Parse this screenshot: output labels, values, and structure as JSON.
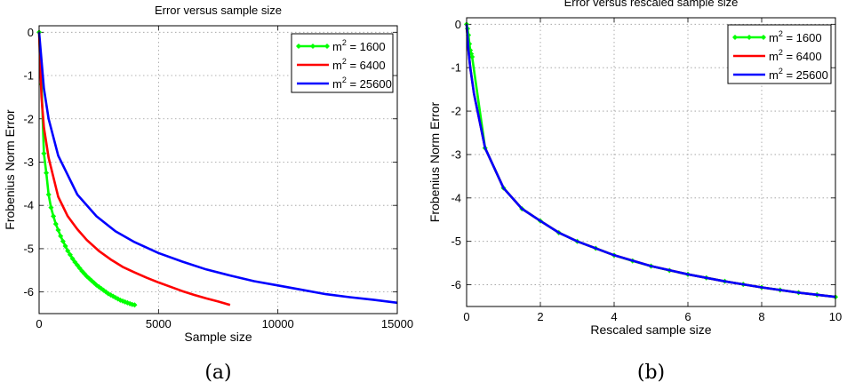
{
  "colors": {
    "green": "#00ff00",
    "red": "#ff0000",
    "blue": "#0000ff",
    "grid": "#9a9a9a",
    "frame": "#000000"
  },
  "chart_data": [
    {
      "type": "line",
      "panel_label": "(a)",
      "title": "Error versus sample size",
      "xlabel": "Sample size",
      "ylabel": "Frobenius Norm Error",
      "xlim": [
        0,
        15000
      ],
      "ylim": [
        -6.5,
        0.15
      ],
      "xticks": [
        0,
        5000,
        10000,
        15000
      ],
      "yticks": [
        0,
        -1,
        -2,
        -3,
        -4,
        -5,
        -6
      ],
      "grid": true,
      "legend_position": "top-right",
      "series": [
        {
          "name": "m² = 1600",
          "label_base": "m",
          "label_sup": "2",
          "label_rest": " = 1600",
          "color": "#00ff00",
          "markers": true,
          "x": [
            0,
            100,
            200,
            300,
            400,
            500,
            600,
            700,
            800,
            900,
            1000,
            1100,
            1200,
            1300,
            1400,
            1500,
            1600,
            1700,
            1800,
            1900,
            2000,
            2100,
            2200,
            2300,
            2400,
            2500,
            2600,
            2700,
            2800,
            2900,
            3000,
            3100,
            3200,
            3300,
            3400,
            3500,
            3600,
            3700,
            3800,
            3900,
            4000
          ],
          "y": [
            0,
            -1.2,
            -2.8,
            -3.25,
            -3.75,
            -4.05,
            -4.25,
            -4.43,
            -4.57,
            -4.71,
            -4.83,
            -4.94,
            -5.05,
            -5.14,
            -5.23,
            -5.31,
            -5.38,
            -5.45,
            -5.52,
            -5.58,
            -5.64,
            -5.69,
            -5.74,
            -5.79,
            -5.84,
            -5.88,
            -5.92,
            -5.96,
            -6.0,
            -6.04,
            -6.07,
            -6.1,
            -6.13,
            -6.16,
            -6.19,
            -6.21,
            -6.23,
            -6.25,
            -6.27,
            -6.29,
            -6.3
          ]
        },
        {
          "name": "m² = 6400",
          "label_base": "m",
          "label_sup": "2",
          "label_rest": " = 6400",
          "color": "#ff0000",
          "markers": false,
          "x": [
            0,
            50,
            100,
            200,
            400,
            800,
            1200,
            1600,
            2000,
            2500,
            3000,
            3500,
            4000,
            4500,
            5000,
            5500,
            6000,
            6500,
            7000,
            7500,
            8000
          ],
          "y": [
            0,
            -0.8,
            -1.5,
            -2.2,
            -2.9,
            -3.8,
            -4.25,
            -4.55,
            -4.8,
            -5.05,
            -5.25,
            -5.42,
            -5.55,
            -5.67,
            -5.78,
            -5.88,
            -5.98,
            -6.07,
            -6.15,
            -6.22,
            -6.3
          ]
        },
        {
          "name": "m² = 25600",
          "label_base": "m",
          "label_sup": "2",
          "label_rest": " = 25600",
          "color": "#0000ff",
          "markers": false,
          "x": [
            0,
            200,
            400,
            800,
            1600,
            2400,
            3200,
            4000,
            5000,
            6000,
            7000,
            8000,
            9000,
            10000,
            11000,
            12000,
            13000,
            14000,
            15000
          ],
          "y": [
            0,
            -1.3,
            -2.0,
            -2.85,
            -3.75,
            -4.25,
            -4.6,
            -4.85,
            -5.1,
            -5.3,
            -5.48,
            -5.62,
            -5.75,
            -5.85,
            -5.95,
            -6.05,
            -6.12,
            -6.18,
            -6.25
          ]
        }
      ]
    },
    {
      "type": "line",
      "panel_label": "(b)",
      "title": "Error versus rescaled sample size",
      "xlabel": "Rescaled sample size",
      "ylabel": "Frobenius Norm Error",
      "xlim": [
        0,
        10
      ],
      "ylim": [
        -6.5,
        0.15
      ],
      "xticks": [
        0,
        2,
        4,
        6,
        8,
        10
      ],
      "yticks": [
        0,
        -1,
        -2,
        -3,
        -4,
        -5,
        -6
      ],
      "grid": true,
      "legend_position": "top-right",
      "series": [
        {
          "name": "m² = 1600",
          "label_base": "m",
          "label_sup": "2",
          "label_rest": " = 1600",
          "color": "#00ff00",
          "markers": true,
          "x": [
            0,
            0.025,
            0.05,
            0.075,
            0.1,
            0.125,
            0.15,
            0.5,
            1.0,
            1.5,
            2.0,
            2.5,
            3.0,
            3.5,
            4.0,
            4.5,
            5.0,
            5.5,
            6.0,
            6.5,
            7.0,
            7.5,
            8.0,
            8.5,
            9.0,
            9.5,
            10.0
          ],
          "y": [
            0,
            -0.1,
            -0.25,
            -0.45,
            -0.6,
            -0.68,
            -0.75,
            -2.85,
            -3.77,
            -4.25,
            -4.53,
            -4.8,
            -5.0,
            -5.16,
            -5.32,
            -5.45,
            -5.57,
            -5.67,
            -5.76,
            -5.84,
            -5.92,
            -5.99,
            -6.06,
            -6.12,
            -6.18,
            -6.23,
            -6.28
          ]
        },
        {
          "name": "m² = 6400",
          "label_base": "m",
          "label_sup": "2",
          "label_rest": " = 6400",
          "color": "#ff0000",
          "markers": false,
          "x": [
            0,
            0.05,
            0.1,
            0.2,
            0.5,
            1.0,
            1.5,
            2.0,
            2.5,
            3.0,
            4.0,
            5.0,
            6.0,
            7.0,
            8.0,
            9.0,
            10.0
          ],
          "y": [
            0,
            -0.6,
            -1.0,
            -1.6,
            -2.85,
            -3.77,
            -4.25,
            -4.53,
            -4.8,
            -5.0,
            -5.32,
            -5.57,
            -5.76,
            -5.92,
            -6.06,
            -6.18,
            -6.28
          ]
        },
        {
          "name": "m² = 25600",
          "label_base": "m",
          "label_sup": "2",
          "label_rest": " = 25600",
          "color": "#0000ff",
          "markers": false,
          "x": [
            0,
            0.05,
            0.1,
            0.2,
            0.5,
            1.0,
            1.5,
            2.0,
            2.5,
            3.0,
            4.0,
            5.0,
            6.0,
            7.0,
            8.0,
            9.0,
            10.0
          ],
          "y": [
            0,
            -0.6,
            -1.0,
            -1.6,
            -2.85,
            -3.77,
            -4.25,
            -4.53,
            -4.8,
            -5.0,
            -5.32,
            -5.57,
            -5.76,
            -5.92,
            -6.06,
            -6.18,
            -6.28
          ]
        }
      ]
    }
  ]
}
